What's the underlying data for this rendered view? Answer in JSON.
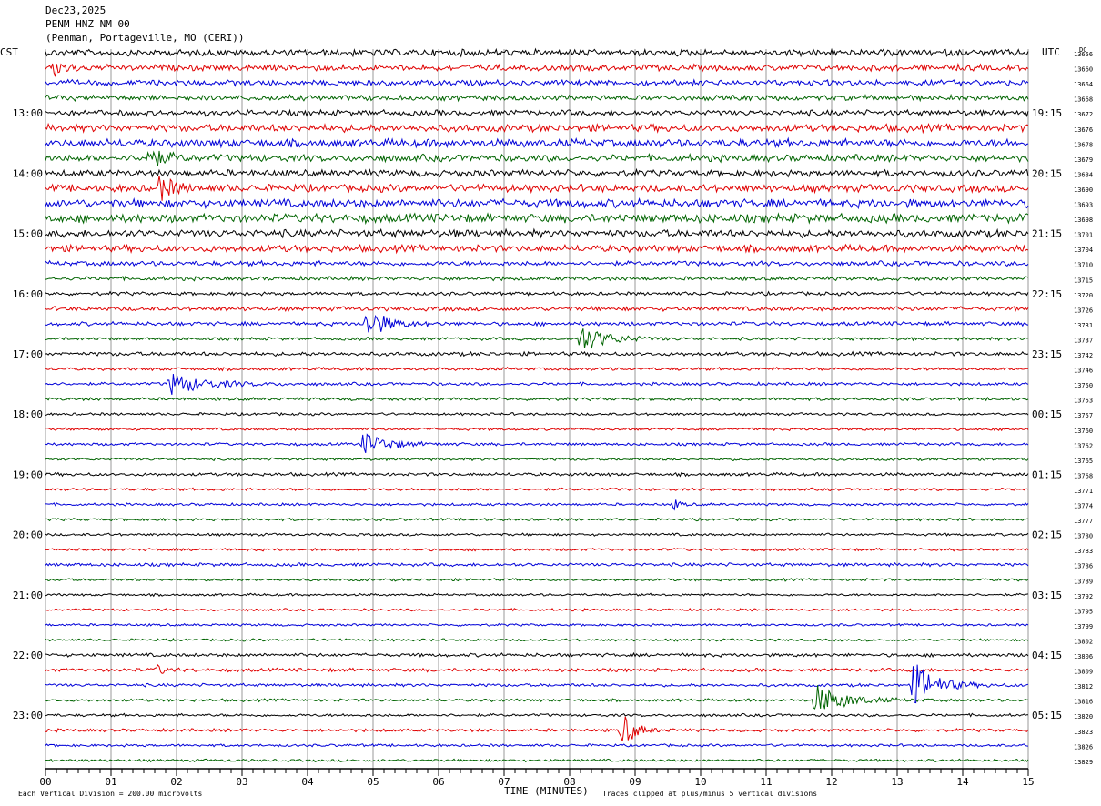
{
  "header": {
    "date": "Dec23,2025",
    "station": "PENM HNZ NM 00",
    "location": "(Penman, Portageville, MO (CERI))",
    "left_zone": "CST",
    "right_zone": "UTC",
    "dc_label": "DC"
  },
  "footer": {
    "scale_note": "Each Vertical Division =  200.00 microvolts",
    "x_title": "TIME (MINUTES)",
    "clip_note": "Traces clipped at plus/minus 5 vertical divisions"
  },
  "colors": {
    "cycle": [
      "#000000",
      "#e00000",
      "#0000d8",
      "#006400"
    ],
    "grid": "#9a9a9a"
  },
  "chart_data": {
    "type": "line",
    "title": "PENM HNZ NM 00",
    "xlabel": "TIME (MINUTES)",
    "xlim": [
      0,
      15
    ],
    "x_ticks": [
      "00",
      "01",
      "02",
      "03",
      "04",
      "05",
      "06",
      "07",
      "08",
      "09",
      "10",
      "11",
      "12",
      "13",
      "14",
      "15"
    ],
    "rows_per_hour": 4,
    "left_hour_labels": [
      "13:00",
      "14:00",
      "15:00",
      "16:00",
      "17:00",
      "18:00",
      "19:00",
      "20:00",
      "21:00",
      "22:00",
      "23:00"
    ],
    "right_hour_labels": [
      "19:15",
      "20:15",
      "21:15",
      "22:15",
      "23:15",
      "00:15",
      "01:15",
      "02:15",
      "03:15",
      "04:15",
      "05:15"
    ],
    "dc_offsets": [
      13656,
      13660,
      13664,
      13668,
      13672,
      13676,
      13678,
      13679,
      13684,
      13690,
      13693,
      13698,
      13701,
      13704,
      13710,
      13715,
      13720,
      13726,
      13731,
      13737,
      13742,
      13746,
      13750,
      13753,
      13757,
      13760,
      13762,
      13765,
      13768,
      13771,
      13774,
      13777,
      13780,
      13783,
      13786,
      13789,
      13792,
      13795,
      13799,
      13802,
      13806,
      13809,
      13812,
      13816,
      13820,
      13823,
      13826,
      13829
    ],
    "noise_amplitude": [
      3,
      2.8,
      2.6,
      2.5,
      2.6,
      3.4,
      3.6,
      3.2,
      3.0,
      3.4,
      3.8,
      4.0,
      3.4,
      3.2,
      2.2,
      1.8,
      1.6,
      2.0,
      1.8,
      1.4,
      1.8,
      1.4,
      1.4,
      1.4,
      1.2,
      1.2,
      1.3,
      1.2,
      1.5,
      1.2,
      1.2,
      1.2,
      1.2,
      1.2,
      1.5,
      1.2,
      1.1,
      1.1,
      1.1,
      1.1,
      1.6,
      1.6,
      1.4,
      1.3,
      1.3,
      1.4,
      1.2,
      1.2
    ],
    "events": [
      {
        "row": 1,
        "minute": 0.15,
        "amplitude": 10,
        "duration": 0.3
      },
      {
        "row": 7,
        "minute": 1.55,
        "amplitude": 12,
        "duration": 0.5
      },
      {
        "row": 9,
        "minute": 1.75,
        "amplitude": 14,
        "duration": 0.4
      },
      {
        "row": 18,
        "minute": 4.9,
        "amplitude": 18,
        "duration": 0.6
      },
      {
        "row": 19,
        "minute": 8.15,
        "amplitude": 16,
        "duration": 0.8
      },
      {
        "row": 22,
        "minute": 1.9,
        "amplitude": 12,
        "duration": 1.1
      },
      {
        "row": 26,
        "minute": 4.85,
        "amplitude": 12,
        "duration": 0.8
      },
      {
        "row": 30,
        "minute": 9.6,
        "amplitude": 5,
        "duration": 0.2
      },
      {
        "row": 41,
        "minute": 1.7,
        "amplitude": 5,
        "duration": 0.3
      },
      {
        "row": 42,
        "minute": 13.25,
        "amplitude": 25,
        "duration": 0.7
      },
      {
        "row": 43,
        "minute": 11.75,
        "amplitude": 17,
        "duration": 0.9
      },
      {
        "row": 45,
        "minute": 8.8,
        "amplitude": 20,
        "duration": 0.4
      }
    ]
  }
}
